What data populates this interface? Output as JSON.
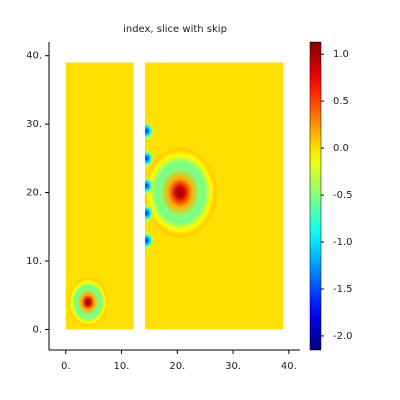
{
  "chart_data": {
    "type": "heatmap",
    "title": "index, slice with skip",
    "xlim": [
      -3,
      42
    ],
    "ylim": [
      -3,
      42
    ],
    "xticks": [
      {
        "value": 0,
        "label": "0."
      },
      {
        "value": 10,
        "label": "10."
      },
      {
        "value": 20,
        "label": "20."
      },
      {
        "value": 30,
        "label": "30."
      },
      {
        "value": 40,
        "label": "40."
      }
    ],
    "yticks": [
      {
        "value": 0,
        "label": "0."
      },
      {
        "value": 10,
        "label": "10."
      },
      {
        "value": 20,
        "label": "20."
      },
      {
        "value": 30,
        "label": "30."
      },
      {
        "value": 40,
        "label": "40."
      }
    ],
    "panels": [
      {
        "x": [
          0,
          12.2
        ],
        "y": [
          0,
          39
        ]
      },
      {
        "x": [
          14.2,
          39
        ],
        "y": [
          0,
          39
        ]
      }
    ],
    "points": {
      "x": [
        4,
        20.5,
        14.5,
        14.5,
        14.5,
        14.5,
        14.5
      ],
      "y": [
        4,
        20,
        13,
        17,
        21,
        25,
        29
      ],
      "values": [
        1.1,
        1.1,
        -1.6,
        -1.6,
        -1.6,
        -1.6,
        -1.6
      ]
    },
    "colorbar": {
      "lim": [
        -2.15,
        1.13
      ],
      "colormap": "jet",
      "ticks": [
        {
          "value": 1,
          "label": "1.0"
        },
        {
          "value": 0.5,
          "label": "0.5"
        },
        {
          "value": 0,
          "label": "0.0"
        },
        {
          "value": -0.5,
          "label": "-0.5"
        },
        {
          "value": -1,
          "label": "-1.0"
        },
        {
          "value": -1.5,
          "label": "-1.5"
        },
        {
          "value": -2,
          "label": "-2.0"
        }
      ]
    }
  }
}
